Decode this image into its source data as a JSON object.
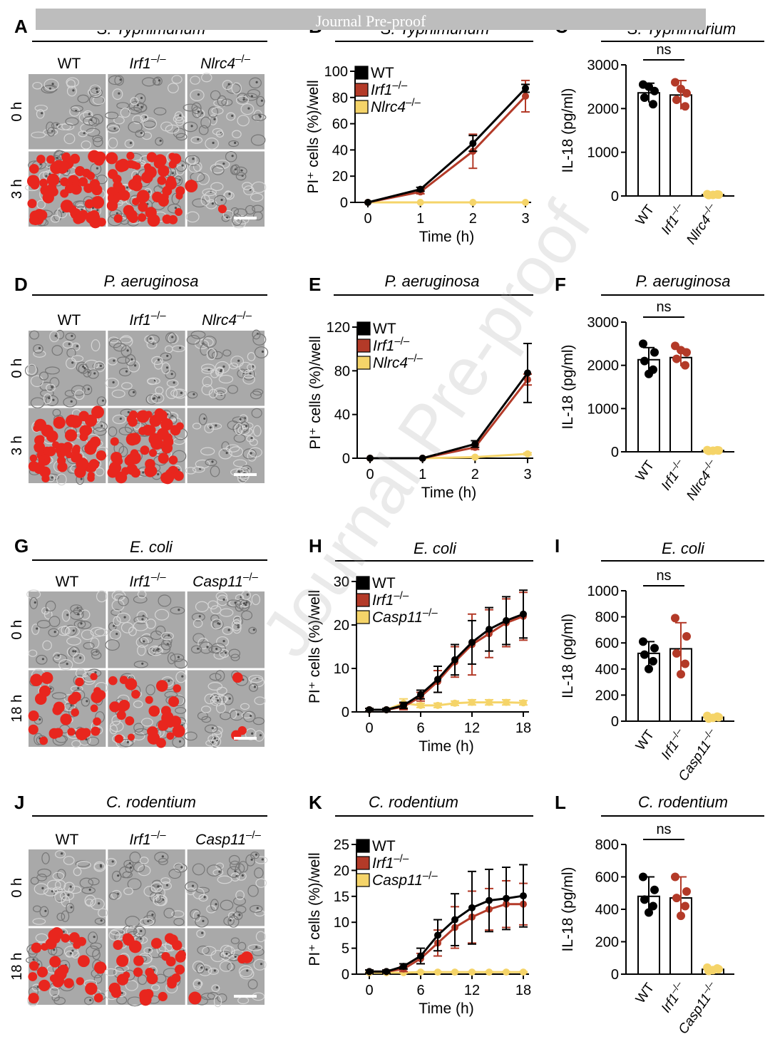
{
  "watermark": {
    "banner": "Journal Pre-proof",
    "diagonal": "Journal Pre-proof"
  },
  "colors": {
    "wt": "#000000",
    "irf1": "#b33a28",
    "nlrc4": "#f5d469",
    "pi_red": "#e8261e"
  },
  "image_panels": [
    {
      "letter": "A",
      "title": "S. Typhimurium",
      "cols": [
        "WT",
        "Irf1–/–",
        "Nlrc4–/–"
      ],
      "rows": [
        "0 h",
        "3 h"
      ],
      "red_density": [
        0.9,
        0.85,
        0.03
      ]
    },
    {
      "letter": "D",
      "title": "P. aeruginosa",
      "cols": [
        "WT",
        "Irf1–/–",
        "Nlrc4–/–"
      ],
      "rows": [
        "0 h",
        "3 h"
      ],
      "red_density": [
        0.85,
        0.8,
        0.0
      ]
    },
    {
      "letter": "G",
      "title": "E. coli",
      "cols": [
        "WT",
        "Irf1–/–",
        "Casp11–/–"
      ],
      "rows": [
        "0 h",
        "18 h"
      ],
      "red_density": [
        0.4,
        0.45,
        0.05
      ]
    },
    {
      "letter": "J",
      "title": "C. rodentium",
      "cols": [
        "WT",
        "Irf1–/–",
        "Casp11–/–"
      ],
      "rows": [
        "0 h",
        "18 h"
      ],
      "red_density": [
        0.45,
        0.45,
        0.04
      ]
    }
  ],
  "chart_data": [
    {
      "letter": "B",
      "type": "line",
      "title": "S. Typhimurium",
      "xlabel": "Time (h)",
      "ylabel": "PI⁺ cells (%)/well",
      "x": [
        0,
        1,
        2,
        3
      ],
      "xticks": [
        0,
        1,
        2,
        3
      ],
      "ylim": [
        0,
        100
      ],
      "yticks": [
        0,
        20,
        40,
        60,
        80,
        100
      ],
      "legend": [
        "WT",
        "Irf1–/–",
        "Nlrc4–/–"
      ],
      "series": [
        {
          "name": "WT",
          "values": [
            0,
            10,
            45,
            87
          ],
          "err": [
            0,
            1.5,
            6,
            3
          ]
        },
        {
          "name": "Irf1–/–",
          "values": [
            0,
            8,
            39,
            81
          ],
          "err": [
            0,
            1.5,
            13,
            12
          ]
        },
        {
          "name": "Nlrc4–/–",
          "values": [
            0,
            0,
            0,
            0
          ],
          "err": [
            0,
            0,
            0,
            0
          ]
        }
      ]
    },
    {
      "letter": "C",
      "type": "bar",
      "title": "S. Typhimurium",
      "ylabel": "IL-18 (pg/ml)",
      "ylim": [
        0,
        3000
      ],
      "yticks": [
        0,
        1000,
        2000,
        3000
      ],
      "categories": [
        "WT",
        "Irf1–/–",
        "Nlrc4–/–"
      ],
      "values": [
        2360,
        2310,
        30
      ],
      "err": [
        220,
        330,
        10
      ],
      "points": [
        [
          2550,
          2400,
          2250,
          2100,
          2500
        ],
        [
          2600,
          2350,
          2200,
          2050,
          2450
        ],
        [
          40,
          30,
          20,
          35,
          25
        ]
      ],
      "annotation": "ns"
    },
    {
      "letter": "E",
      "type": "line",
      "title": "P. aeruginosa",
      "xlabel": "Time (h)",
      "ylabel": "PI⁺ cells (%)/well",
      "x": [
        0,
        1,
        2,
        3
      ],
      "xticks": [
        0,
        1,
        2,
        3
      ],
      "ylim": [
        0,
        120
      ],
      "yticks": [
        0,
        40,
        80,
        120
      ],
      "legend": [
        "WT",
        "Irf1–/–",
        "Nlrc4–/–"
      ],
      "series": [
        {
          "name": "WT",
          "values": [
            0,
            0,
            13,
            78
          ],
          "err": [
            0,
            0,
            3,
            27
          ]
        },
        {
          "name": "Irf1–/–",
          "values": [
            0,
            0,
            10,
            72
          ],
          "err": [
            0,
            0,
            2,
            5
          ]
        },
        {
          "name": "Nlrc4–/–",
          "values": [
            0,
            0,
            1,
            4
          ],
          "err": [
            0,
            0,
            0.5,
            1
          ]
        }
      ]
    },
    {
      "letter": "F",
      "type": "bar",
      "title": "P. aeruginosa",
      "ylabel": "IL-18 (pg/ml)",
      "ylim": [
        0,
        3000
      ],
      "yticks": [
        0,
        1000,
        2000,
        3000
      ],
      "categories": [
        "WT",
        "Irf1–/–",
        "Nlrc4–/–"
      ],
      "values": [
        2130,
        2180,
        30
      ],
      "err": [
        280,
        200,
        10
      ],
      "points": [
        [
          2500,
          2300,
          2100,
          1900,
          1800
        ],
        [
          2450,
          2300,
          2150,
          2000,
          2350
        ],
        [
          40,
          30,
          20,
          35,
          25
        ]
      ],
      "annotation": "ns"
    },
    {
      "letter": "H",
      "type": "line",
      "title": "E. coli",
      "xlabel": "Time (h)",
      "ylabel": "PI⁺ cells (%)/well",
      "x": [
        0,
        2,
        4,
        6,
        8,
        10,
        12,
        14,
        16,
        18
      ],
      "xticks": [
        0,
        6,
        12,
        18
      ],
      "ylim": [
        0,
        30
      ],
      "yticks": [
        0,
        10,
        20,
        30
      ],
      "legend": [
        "WT",
        "Irf1–/–",
        "Casp11–/–"
      ],
      "series": [
        {
          "name": "WT",
          "values": [
            0.5,
            0.5,
            1.5,
            4,
            7.5,
            12,
            16,
            19,
            21,
            22.5
          ],
          "err": [
            0.3,
            0.3,
            0.7,
            1,
            3,
            3.5,
            5,
            5,
            5.5,
            5.5
          ]
        },
        {
          "name": "Irf1–/–",
          "values": [
            0.5,
            0.5,
            1.2,
            3.5,
            7,
            11.5,
            15.5,
            18,
            20.5,
            22
          ],
          "err": [
            0.3,
            0.3,
            0.7,
            1,
            2.5,
            3.5,
            7,
            5.5,
            5.5,
            5.5
          ]
        },
        {
          "name": "Casp11–/–",
          "values": [
            0.5,
            0.5,
            2,
            1.5,
            1.5,
            2,
            2.2,
            2.2,
            2.2,
            2.1
          ],
          "err": [
            0.3,
            0.3,
            1,
            0.5,
            0.5,
            0.5,
            0.6,
            0.6,
            0.6,
            0.5
          ]
        }
      ]
    },
    {
      "letter": "I",
      "type": "bar",
      "title": "E. coli",
      "ylabel": "IL-18 (pg/ml)",
      "ylim": [
        0,
        1000
      ],
      "yticks": [
        0,
        200,
        400,
        600,
        800,
        1000
      ],
      "categories": [
        "WT",
        "Irf1–/–",
        "Casp11–/–"
      ],
      "values": [
        520,
        555,
        30
      ],
      "err": [
        90,
        200,
        10
      ],
      "points": [
        [
          610,
          560,
          510,
          460,
          400
        ],
        [
          790,
          650,
          520,
          440,
          360
        ],
        [
          40,
          30,
          20,
          35,
          25
        ]
      ],
      "annotation": "ns"
    },
    {
      "letter": "K",
      "type": "line",
      "title": "C. rodentium",
      "xlabel": "Time (h)",
      "ylabel": "PI⁺ cells (%)/well",
      "x": [
        0,
        2,
        4,
        6,
        8,
        10,
        12,
        14,
        16,
        18
      ],
      "xticks": [
        0,
        6,
        12,
        18
      ],
      "ylim": [
        0,
        25
      ],
      "yticks": [
        0,
        5,
        10,
        15,
        20,
        25
      ],
      "legend": [
        "WT",
        "Irf1–/–",
        "Casp11–/–"
      ],
      "series": [
        {
          "name": "WT",
          "values": [
            0.5,
            0.5,
            1.5,
            3.5,
            7.5,
            10.5,
            12.8,
            14.2,
            14.6,
            15.1
          ],
          "err": [
            0.3,
            0.3,
            0.5,
            1.5,
            3,
            5,
            7,
            6,
            6,
            6
          ]
        },
        {
          "name": "Irf1–/–",
          "values": [
            0.5,
            0.5,
            1,
            3,
            6,
            9,
            11,
            12.5,
            13.5,
            13.5
          ],
          "err": [
            0.3,
            0.3,
            0.5,
            1,
            2.5,
            4,
            5,
            4,
            4.5,
            4
          ]
        },
        {
          "name": "Casp11–/–",
          "values": [
            0.3,
            0.3,
            0.3,
            0.4,
            0.4,
            0.4,
            0.4,
            0.4,
            0.4,
            0.4
          ],
          "err": [
            0.1,
            0.1,
            0.1,
            0.1,
            0.1,
            0.1,
            0.1,
            0.1,
            0.1,
            0.1
          ]
        }
      ]
    },
    {
      "letter": "L",
      "type": "bar",
      "title": "C. rodentium",
      "ylabel": "IL-18 (pg/ml)",
      "ylim": [
        0,
        800
      ],
      "yticks": [
        0,
        200,
        400,
        600,
        800
      ],
      "categories": [
        "WT",
        "Irf1–/–",
        "Casp11–/–"
      ],
      "values": [
        480,
        470,
        30
      ],
      "err": [
        120,
        130,
        10
      ],
      "points": [
        [
          600,
          520,
          460,
          420,
          380
        ],
        [
          600,
          510,
          470,
          420,
          360
        ],
        [
          40,
          30,
          20,
          35,
          25
        ]
      ],
      "annotation": "ns"
    }
  ]
}
